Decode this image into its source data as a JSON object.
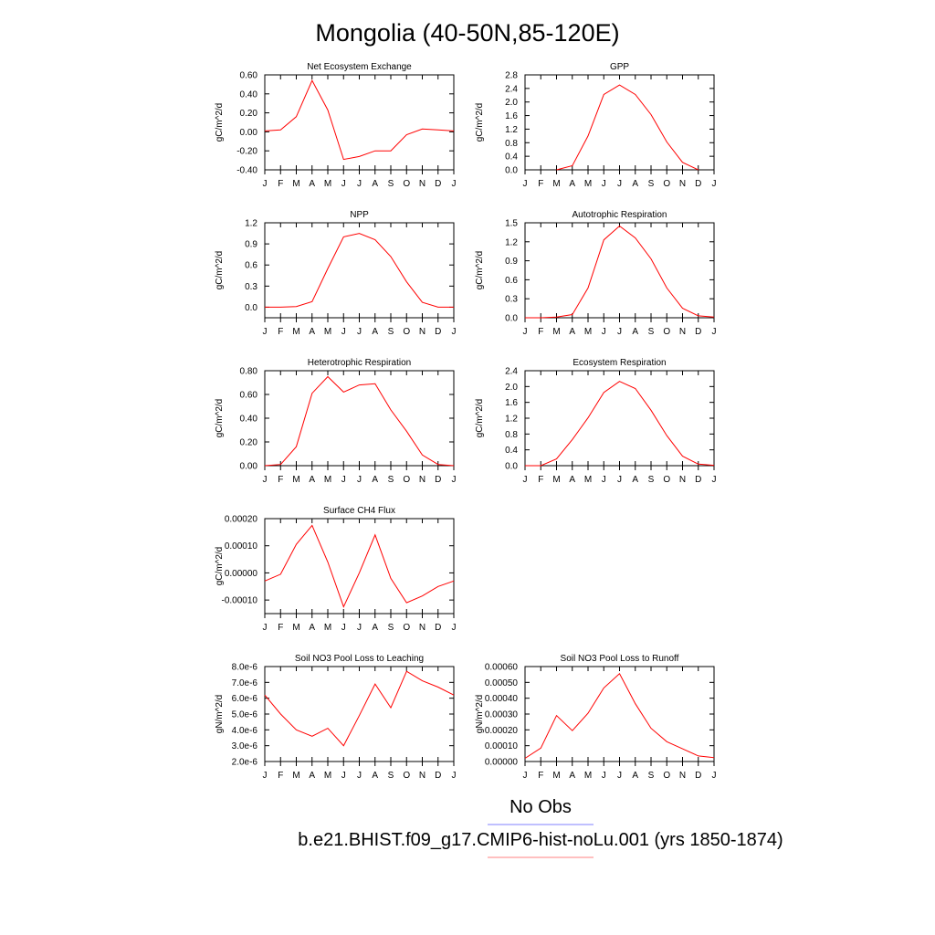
{
  "figure": {
    "title": "Mongolia (40-50N,85-120E)",
    "legend": {
      "entries": [
        {
          "label": "No Obs",
          "color": "#8080ff"
        },
        {
          "label": "b.e21.BHIST.f09_g17.CMIP6-hist-noLu.001 (yrs 1850-1874)",
          "color": "#ff8080"
        }
      ]
    }
  },
  "chart_data": [
    {
      "type": "line",
      "title": "Net Ecosystem Exchange",
      "ylabel": "gC/m^2/d",
      "categories": [
        "J",
        "F",
        "M",
        "A",
        "M",
        "J",
        "J",
        "A",
        "S",
        "O",
        "N",
        "D",
        "J"
      ],
      "ylim": [
        -0.4,
        0.6
      ],
      "yticks": [
        "0.60",
        "0.40",
        "0.20",
        "0.00",
        "-0.20",
        "-0.40"
      ],
      "series": [
        {
          "color": "#ff0000",
          "values": [
            0.01,
            0.02,
            0.16,
            0.54,
            0.23,
            -0.29,
            -0.26,
            -0.2,
            -0.2,
            -0.03,
            0.03,
            0.02,
            0.01
          ]
        }
      ]
    },
    {
      "type": "line",
      "title": "GPP",
      "ylabel": "gC/m^2/d",
      "categories": [
        "J",
        "F",
        "M",
        "A",
        "M",
        "J",
        "J",
        "A",
        "S",
        "O",
        "N",
        "D",
        "J"
      ],
      "ylim": [
        0,
        2.8
      ],
      "yticks": [
        "2.8",
        "2.4",
        "2.0",
        "1.6",
        "1.2",
        "0.8",
        "0.4",
        "0.0"
      ],
      "series": [
        {
          "color": "#ff0000",
          "values": [
            null,
            null,
            0.0,
            0.12,
            1.0,
            2.22,
            2.5,
            2.22,
            1.63,
            0.82,
            0.22,
            0.0,
            null
          ]
        }
      ]
    },
    {
      "type": "line",
      "title": "NPP",
      "ylabel": "gC/m^2/d",
      "categories": [
        "J",
        "F",
        "M",
        "A",
        "M",
        "J",
        "J",
        "A",
        "S",
        "O",
        "N",
        "D",
        "J"
      ],
      "ylim": [
        -0.15,
        1.2
      ],
      "yticks": [
        "1.2",
        "0.9",
        "0.6",
        "0.3",
        "0.0"
      ],
      "series": [
        {
          "color": "#ff0000",
          "values": [
            0.0,
            0.0,
            0.01,
            0.08,
            0.55,
            1.0,
            1.05,
            0.96,
            0.72,
            0.36,
            0.07,
            0.0,
            0.0
          ]
        }
      ]
    },
    {
      "type": "line",
      "title": "Autotrophic Respiration",
      "ylabel": "gC/m^2/d",
      "categories": [
        "J",
        "F",
        "M",
        "A",
        "M",
        "J",
        "J",
        "A",
        "S",
        "O",
        "N",
        "D",
        "J"
      ],
      "ylim": [
        0,
        1.5
      ],
      "yticks": [
        "1.5",
        "1.2",
        "0.9",
        "0.6",
        "0.3",
        "0.0"
      ],
      "series": [
        {
          "color": "#ff0000",
          "values": [
            0.0,
            0.0,
            0.01,
            0.05,
            0.47,
            1.23,
            1.45,
            1.26,
            0.93,
            0.47,
            0.15,
            0.03,
            0.01
          ]
        }
      ]
    },
    {
      "type": "line",
      "title": "Heterotrophic Respiration",
      "ylabel": "gC/m^2/d",
      "categories": [
        "J",
        "F",
        "M",
        "A",
        "M",
        "J",
        "J",
        "A",
        "S",
        "O",
        "N",
        "D",
        "J"
      ],
      "ylim": [
        0,
        0.8
      ],
      "yticks": [
        "0.80",
        "0.60",
        "0.40",
        "0.20",
        "0.00"
      ],
      "series": [
        {
          "color": "#ff0000",
          "values": [
            0.0,
            0.01,
            0.16,
            0.61,
            0.75,
            0.62,
            0.68,
            0.69,
            0.47,
            0.29,
            0.09,
            0.01,
            0.0
          ]
        }
      ]
    },
    {
      "type": "line",
      "title": "Ecosystem Respiration",
      "ylabel": "gC/m^2/d",
      "categories": [
        "J",
        "F",
        "M",
        "A",
        "M",
        "J",
        "J",
        "A",
        "S",
        "O",
        "N",
        "D",
        "J"
      ],
      "ylim": [
        0,
        2.4
      ],
      "yticks": [
        "2.4",
        "2.0",
        "1.6",
        "1.2",
        "0.8",
        "0.4",
        "0.0"
      ],
      "series": [
        {
          "color": "#ff0000",
          "values": [
            0.0,
            0.0,
            0.17,
            0.66,
            1.21,
            1.85,
            2.13,
            1.95,
            1.4,
            0.76,
            0.24,
            0.04,
            0.01
          ]
        }
      ]
    },
    {
      "type": "line",
      "title": "Surface CH4 Flux",
      "ylabel": "gC/m^2/d",
      "categories": [
        "J",
        "F",
        "M",
        "A",
        "M",
        "J",
        "J",
        "A",
        "S",
        "O",
        "N",
        "D",
        "J"
      ],
      "ylim": [
        -0.00015,
        0.0002
      ],
      "yticks": [
        "0.00020",
        "0.00010",
        "0.00000",
        "-0.00010"
      ],
      "series": [
        {
          "color": "#ff0000",
          "values": [
            -3e-05,
            -5e-06,
            0.000105,
            0.000175,
            4e-05,
            -0.000125,
            0.0,
            0.00014,
            -2e-05,
            -0.00011,
            -8.5e-05,
            -5e-05,
            -3e-05
          ]
        }
      ]
    },
    {
      "type": "line",
      "title": "Soil NO3 Pool Loss to Leaching",
      "ylabel": "gN/m^2/d",
      "categories": [
        "J",
        "F",
        "M",
        "A",
        "M",
        "J",
        "J",
        "A",
        "S",
        "O",
        "N",
        "D",
        "J"
      ],
      "ylim": [
        2e-06,
        8e-06
      ],
      "yticks": [
        "8.0e-6",
        "7.0e-6",
        "6.0e-6",
        "5.0e-6",
        "4.0e-6",
        "3.0e-6",
        "2.0e-6"
      ],
      "series": [
        {
          "color": "#ff0000",
          "values": [
            6.2e-06,
            5e-06,
            4e-06,
            3.6e-06,
            4.1e-06,
            3e-06,
            4.9e-06,
            6.9e-06,
            5.4e-06,
            7.7e-06,
            7.1e-06,
            6.7e-06,
            6.2e-06
          ]
        }
      ]
    },
    {
      "type": "line",
      "title": "Soil NO3 Pool Loss to Runoff",
      "ylabel": "gN/m^2/d",
      "categories": [
        "J",
        "F",
        "M",
        "A",
        "M",
        "J",
        "J",
        "A",
        "S",
        "O",
        "N",
        "D",
        "J"
      ],
      "ylim": [
        0,
        0.0006
      ],
      "yticks": [
        "0.00060",
        "0.00050",
        "0.00040",
        "0.00030",
        "0.00020",
        "0.00010",
        "0.00000"
      ],
      "series": [
        {
          "color": "#ff0000",
          "values": [
            2e-05,
            8.5e-05,
            0.00029,
            0.000195,
            0.000305,
            0.000465,
            0.000555,
            0.000365,
            0.00021,
            0.000125,
            8e-05,
            3.5e-05,
            2.5e-05
          ]
        }
      ]
    }
  ]
}
